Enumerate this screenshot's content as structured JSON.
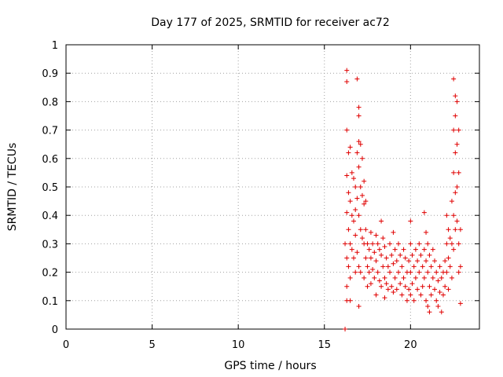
{
  "chart_data": {
    "type": "scatter",
    "title": "Day 177 of 2025, SRMTID for receiver ac72",
    "xlabel": "GPS time / hours",
    "ylabel": "SRMTID / TECUs",
    "xlim": [
      0,
      24
    ],
    "ylim": [
      0,
      1
    ],
    "xticks": [
      0,
      5,
      10,
      15,
      20
    ],
    "xtick_labels": [
      "0",
      "5",
      "10",
      "15",
      "20"
    ],
    "yticks": [
      0,
      0.1,
      0.2,
      0.3,
      0.4,
      0.5,
      0.6,
      0.7,
      0.8,
      0.9,
      1
    ],
    "ytick_labels": [
      "0",
      "0.1",
      "0.2",
      "0.3",
      "0.4",
      "0.5",
      "0.6",
      "0.7",
      "0.8",
      "0.9",
      "1"
    ],
    "grid": true,
    "series": [
      {
        "name": "SRMTID",
        "marker": "+",
        "color": "#e00000",
        "points": [
          [
            16.2,
            0.0
          ],
          [
            16.2,
            0.3
          ],
          [
            16.3,
            0.91
          ],
          [
            16.3,
            0.87
          ],
          [
            16.3,
            0.7
          ],
          [
            16.3,
            0.54
          ],
          [
            16.3,
            0.41
          ],
          [
            16.3,
            0.25
          ],
          [
            16.3,
            0.15
          ],
          [
            16.3,
            0.1
          ],
          [
            16.4,
            0.62
          ],
          [
            16.4,
            0.48
          ],
          [
            16.4,
            0.35
          ],
          [
            16.4,
            0.22
          ],
          [
            16.5,
            0.64
          ],
          [
            16.5,
            0.45
          ],
          [
            16.5,
            0.3
          ],
          [
            16.5,
            0.18
          ],
          [
            16.5,
            0.1
          ],
          [
            16.6,
            0.55
          ],
          [
            16.6,
            0.4
          ],
          [
            16.6,
            0.28
          ],
          [
            16.7,
            0.53
          ],
          [
            16.7,
            0.38
          ],
          [
            16.7,
            0.25
          ],
          [
            16.8,
            0.5
          ],
          [
            16.8,
            0.42
          ],
          [
            16.8,
            0.33
          ],
          [
            16.8,
            0.2
          ],
          [
            16.9,
            0.88
          ],
          [
            16.9,
            0.62
          ],
          [
            16.9,
            0.46
          ],
          [
            16.9,
            0.27
          ],
          [
            17.0,
            0.78
          ],
          [
            17.0,
            0.75
          ],
          [
            17.0,
            0.66
          ],
          [
            17.0,
            0.57
          ],
          [
            17.0,
            0.4
          ],
          [
            17.0,
            0.22
          ],
          [
            17.0,
            0.08
          ],
          [
            17.1,
            0.65
          ],
          [
            17.1,
            0.5
          ],
          [
            17.1,
            0.35
          ],
          [
            17.1,
            0.2
          ],
          [
            17.2,
            0.6
          ],
          [
            17.2,
            0.47
          ],
          [
            17.2,
            0.32
          ],
          [
            17.3,
            0.52
          ],
          [
            17.3,
            0.44
          ],
          [
            17.3,
            0.3
          ],
          [
            17.3,
            0.18
          ],
          [
            17.4,
            0.45
          ],
          [
            17.4,
            0.35
          ],
          [
            17.4,
            0.25
          ],
          [
            17.5,
            0.3
          ],
          [
            17.5,
            0.22
          ],
          [
            17.5,
            0.15
          ],
          [
            17.6,
            0.28
          ],
          [
            17.6,
            0.2
          ],
          [
            17.7,
            0.34
          ],
          [
            17.7,
            0.25
          ],
          [
            17.7,
            0.16
          ],
          [
            17.8,
            0.3
          ],
          [
            17.8,
            0.21
          ],
          [
            17.9,
            0.27
          ],
          [
            17.9,
            0.18
          ],
          [
            18.0,
            0.33
          ],
          [
            18.0,
            0.24
          ],
          [
            18.0,
            0.12
          ],
          [
            18.1,
            0.3
          ],
          [
            18.1,
            0.2
          ],
          [
            18.2,
            0.28
          ],
          [
            18.2,
            0.17
          ],
          [
            18.3,
            0.38
          ],
          [
            18.3,
            0.26
          ],
          [
            18.3,
            0.15
          ],
          [
            18.4,
            0.32
          ],
          [
            18.4,
            0.22
          ],
          [
            18.5,
            0.29
          ],
          [
            18.5,
            0.18
          ],
          [
            18.5,
            0.11
          ],
          [
            18.6,
            0.25
          ],
          [
            18.6,
            0.16
          ],
          [
            18.7,
            0.22
          ],
          [
            18.7,
            0.14
          ],
          [
            18.8,
            0.3
          ],
          [
            18.8,
            0.2
          ],
          [
            18.9,
            0.26
          ],
          [
            18.9,
            0.15
          ],
          [
            19.0,
            0.34
          ],
          [
            19.0,
            0.23
          ],
          [
            19.0,
            0.13
          ],
          [
            19.1,
            0.28
          ],
          [
            19.1,
            0.18
          ],
          [
            19.2,
            0.24
          ],
          [
            19.2,
            0.14
          ],
          [
            19.3,
            0.3
          ],
          [
            19.3,
            0.2
          ],
          [
            19.4,
            0.26
          ],
          [
            19.4,
            0.16
          ],
          [
            19.5,
            0.22
          ],
          [
            19.5,
            0.12
          ],
          [
            19.6,
            0.28
          ],
          [
            19.6,
            0.18
          ],
          [
            19.7,
            0.25
          ],
          [
            19.7,
            0.15
          ],
          [
            19.8,
            0.2
          ],
          [
            19.8,
            0.1
          ],
          [
            19.9,
            0.24
          ],
          [
            19.9,
            0.14
          ],
          [
            20.0,
            0.38
          ],
          [
            20.0,
            0.3
          ],
          [
            20.0,
            0.2
          ],
          [
            20.0,
            0.12
          ],
          [
            20.1,
            0.26
          ],
          [
            20.1,
            0.16
          ],
          [
            20.2,
            0.22
          ],
          [
            20.2,
            0.1
          ],
          [
            20.3,
            0.28
          ],
          [
            20.3,
            0.18
          ],
          [
            20.4,
            0.24
          ],
          [
            20.4,
            0.14
          ],
          [
            20.5,
            0.3
          ],
          [
            20.5,
            0.2
          ],
          [
            20.6,
            0.26
          ],
          [
            20.6,
            0.12
          ],
          [
            20.7,
            0.22
          ],
          [
            20.7,
            0.15
          ],
          [
            20.8,
            0.41
          ],
          [
            20.8,
            0.28
          ],
          [
            20.8,
            0.18
          ],
          [
            20.9,
            0.34
          ],
          [
            20.9,
            0.24
          ],
          [
            20.9,
            0.1
          ],
          [
            21.0,
            0.3
          ],
          [
            21.0,
            0.2
          ],
          [
            21.0,
            0.08
          ],
          [
            21.1,
            0.26
          ],
          [
            21.1,
            0.15
          ],
          [
            21.1,
            0.06
          ],
          [
            21.2,
            0.22
          ],
          [
            21.2,
            0.12
          ],
          [
            21.3,
            0.28
          ],
          [
            21.3,
            0.18
          ],
          [
            21.4,
            0.24
          ],
          [
            21.4,
            0.14
          ],
          [
            21.5,
            0.2
          ],
          [
            21.5,
            0.1
          ],
          [
            21.6,
            0.17
          ],
          [
            21.6,
            0.08
          ],
          [
            21.7,
            0.22
          ],
          [
            21.7,
            0.13
          ],
          [
            21.8,
            0.18
          ],
          [
            21.8,
            0.06
          ],
          [
            21.9,
            0.2
          ],
          [
            21.9,
            0.12
          ],
          [
            22.0,
            0.24
          ],
          [
            22.0,
            0.15
          ],
          [
            22.1,
            0.4
          ],
          [
            22.1,
            0.3
          ],
          [
            22.1,
            0.2
          ],
          [
            22.2,
            0.35
          ],
          [
            22.2,
            0.25
          ],
          [
            22.2,
            0.14
          ],
          [
            22.3,
            0.32
          ],
          [
            22.3,
            0.22
          ],
          [
            22.4,
            0.45
          ],
          [
            22.4,
            0.3
          ],
          [
            22.4,
            0.18
          ],
          [
            22.5,
            0.88
          ],
          [
            22.5,
            0.7
          ],
          [
            22.5,
            0.55
          ],
          [
            22.5,
            0.4
          ],
          [
            22.5,
            0.28
          ],
          [
            22.6,
            0.82
          ],
          [
            22.6,
            0.75
          ],
          [
            22.6,
            0.62
          ],
          [
            22.6,
            0.48
          ],
          [
            22.6,
            0.35
          ],
          [
            22.7,
            0.8
          ],
          [
            22.7,
            0.65
          ],
          [
            22.7,
            0.5
          ],
          [
            22.7,
            0.38
          ],
          [
            22.8,
            0.7
          ],
          [
            22.8,
            0.55
          ],
          [
            22.8,
            0.3
          ],
          [
            22.8,
            0.2
          ],
          [
            22.9,
            0.35
          ],
          [
            22.9,
            0.22
          ],
          [
            22.9,
            0.09
          ]
        ]
      }
    ]
  }
}
